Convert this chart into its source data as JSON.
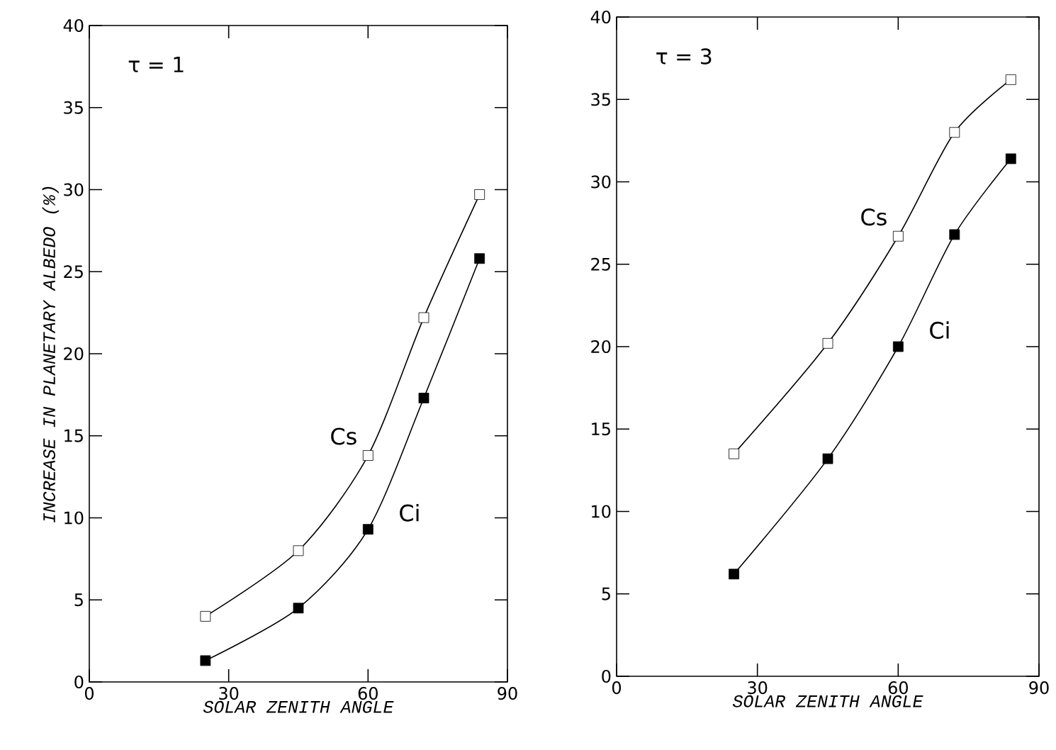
{
  "chart_data": [
    {
      "type": "line",
      "annotations": [
        "τ = 1"
      ],
      "xlabel": "SOLAR ZENITH ANGLE",
      "ylabel": "INCREASE IN PLANETARY ALBEDO (%)",
      "x": [
        25,
        45,
        60,
        72,
        84
      ],
      "xlim": [
        0,
        90
      ],
      "ylim": [
        0,
        40
      ],
      "xticks": [
        0,
        30,
        60,
        90
      ],
      "yticks": [
        0,
        5,
        10,
        15,
        20,
        25,
        30,
        35,
        40
      ],
      "marker": "square",
      "legend": false,
      "series": [
        {
          "name": "Cs",
          "color": "#000000",
          "values": [
            4.0,
            8.0,
            13.8,
            22.2,
            29.7
          ]
        },
        {
          "name": "Ci",
          "color": "#000000",
          "values": [
            1.3,
            4.5,
            9.3,
            17.3,
            25.8
          ]
        }
      ]
    },
    {
      "type": "line",
      "annotations": [
        "τ = 3"
      ],
      "xlabel": "SOLAR ZENITH ANGLE",
      "x": [
        25,
        45,
        60,
        72,
        84
      ],
      "xlim": [
        0,
        90
      ],
      "ylim": [
        0,
        40
      ],
      "xticks": [
        0,
        30,
        60,
        90
      ],
      "yticks": [
        0,
        5,
        10,
        15,
        20,
        25,
        30,
        35,
        40
      ],
      "marker": "square",
      "legend": false,
      "series": [
        {
          "name": "Cs",
          "color": "#000000",
          "values": [
            13.5,
            20.2,
            26.7,
            33.0,
            36.2
          ]
        },
        {
          "name": "Ci",
          "color": "#000000",
          "values": [
            6.2,
            13.2,
            20.0,
            26.8,
            31.4
          ]
        }
      ]
    }
  ]
}
